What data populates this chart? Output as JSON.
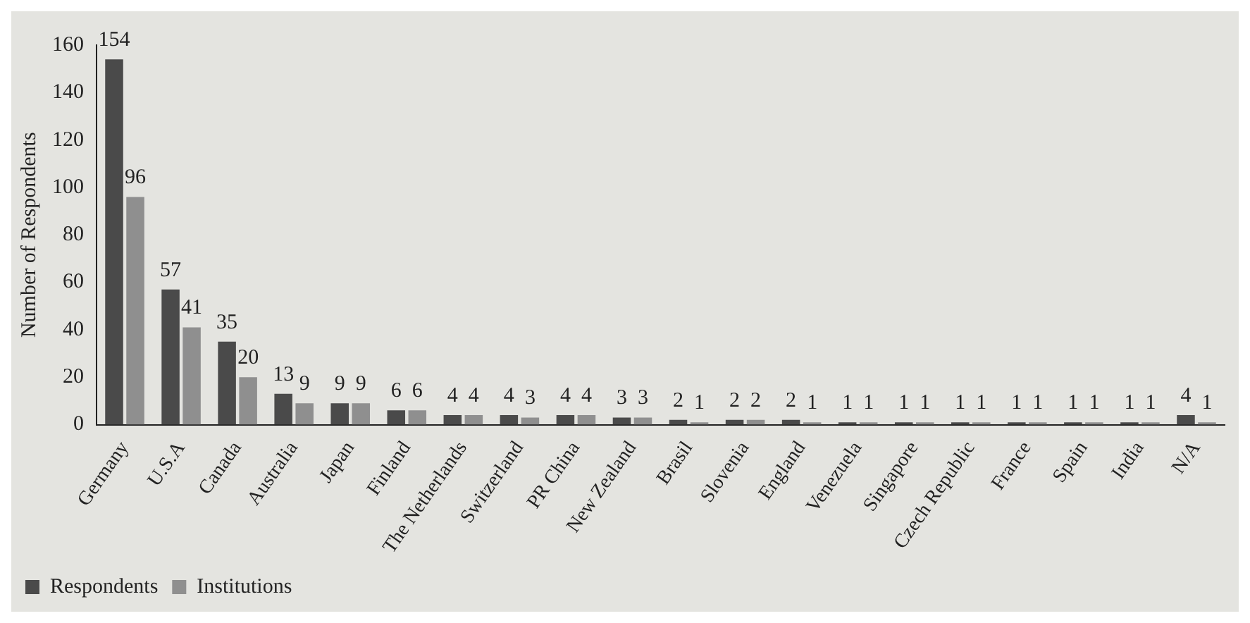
{
  "chart_data": {
    "type": "bar",
    "ylabel": "Number of Respondents",
    "categories": [
      "Germany",
      "U.S.A",
      "Canada",
      "Australia",
      "Japan",
      "Finland",
      "The Netherlands",
      "Switzerland",
      "PR China",
      "New Zealand",
      "Brasil",
      "Slovenia",
      "England",
      "Venezuela",
      "Singapore",
      "Czech Republic",
      "France",
      "Spain",
      "India",
      "N/A"
    ],
    "series": [
      {
        "name": "Respondents",
        "color": "#4a4a4a",
        "values": [
          154,
          57,
          35,
          13,
          9,
          6,
          4,
          4,
          4,
          3,
          2,
          2,
          2,
          1,
          1,
          1,
          1,
          1,
          1,
          4
        ]
      },
      {
        "name": "Institutions",
        "color": "#8f8f8f",
        "values": [
          96,
          41,
          20,
          9,
          9,
          6,
          4,
          3,
          4,
          3,
          1,
          2,
          1,
          1,
          1,
          1,
          1,
          1,
          1,
          1
        ]
      }
    ],
    "ylim": [
      0,
      160
    ],
    "yticks": [
      0,
      20,
      40,
      60,
      80,
      100,
      120,
      140,
      160
    ],
    "grid": false,
    "legend": "bottom left",
    "data_labels": true
  }
}
